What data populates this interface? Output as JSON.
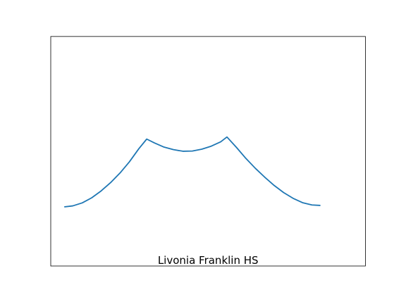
{
  "chart_data": {
    "type": "line",
    "title": "",
    "xlabel": "",
    "ylabel": "",
    "annotation": "Livonia Franklin HS",
    "grid": false,
    "legend": "none",
    "xlim": [
      0,
      1
    ],
    "ylim": [
      0,
      1
    ],
    "series": [
      {
        "color": "#1f77b4",
        "points": [
          [
            0.045,
            0.258
          ],
          [
            0.07,
            0.262
          ],
          [
            0.1,
            0.275
          ],
          [
            0.13,
            0.297
          ],
          [
            0.16,
            0.327
          ],
          [
            0.19,
            0.363
          ],
          [
            0.22,
            0.405
          ],
          [
            0.25,
            0.454
          ],
          [
            0.28,
            0.511
          ],
          [
            0.305,
            0.553
          ],
          [
            0.33,
            0.536
          ],
          [
            0.36,
            0.518
          ],
          [
            0.39,
            0.507
          ],
          [
            0.42,
            0.5
          ],
          [
            0.45,
            0.501
          ],
          [
            0.48,
            0.509
          ],
          [
            0.51,
            0.522
          ],
          [
            0.54,
            0.541
          ],
          [
            0.56,
            0.562
          ],
          [
            0.59,
            0.517
          ],
          [
            0.62,
            0.469
          ],
          [
            0.65,
            0.426
          ],
          [
            0.68,
            0.387
          ],
          [
            0.71,
            0.351
          ],
          [
            0.74,
            0.32
          ],
          [
            0.77,
            0.295
          ],
          [
            0.8,
            0.276
          ],
          [
            0.83,
            0.266
          ],
          [
            0.855,
            0.264
          ]
        ]
      }
    ]
  }
}
